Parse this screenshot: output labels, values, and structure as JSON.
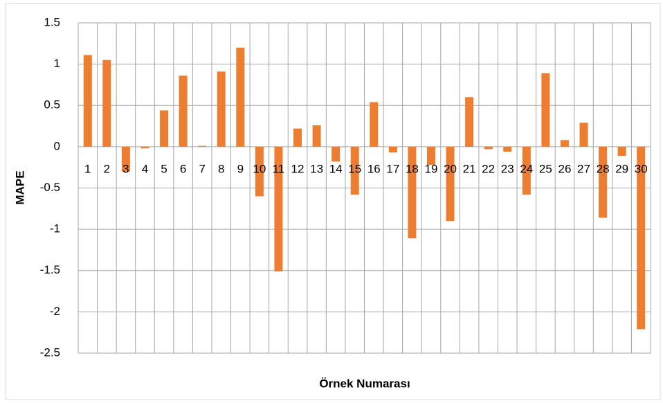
{
  "chart_data": {
    "type": "bar",
    "x_label": "Örnek Numarası",
    "y_label": "MAPE",
    "categories": [
      "1",
      "2",
      "3",
      "4",
      "5",
      "6",
      "7",
      "8",
      "9",
      "10",
      "11",
      "12",
      "13",
      "14",
      "15",
      "16",
      "17",
      "18",
      "19",
      "20",
      "21",
      "22",
      "23",
      "24",
      "25",
      "26",
      "27",
      "28",
      "29",
      "30"
    ],
    "values": [
      1.11,
      1.05,
      -0.3,
      -0.02,
      0.44,
      0.86,
      0.01,
      0.91,
      1.2,
      -0.6,
      -1.51,
      0.22,
      0.26,
      -0.18,
      -0.58,
      0.54,
      -0.07,
      -1.11,
      -0.22,
      -0.9,
      0.6,
      -0.03,
      -0.06,
      -0.58,
      0.89,
      0.08,
      0.29,
      -0.86,
      -0.11,
      -2.21
    ],
    "color": "#ed7d31",
    "ylim": [
      -2.5,
      1.5
    ],
    "yticks": [
      1.5,
      1,
      0.5,
      0,
      -0.5,
      -1,
      -1.5,
      -2,
      -2.5
    ],
    "grid": true
  }
}
